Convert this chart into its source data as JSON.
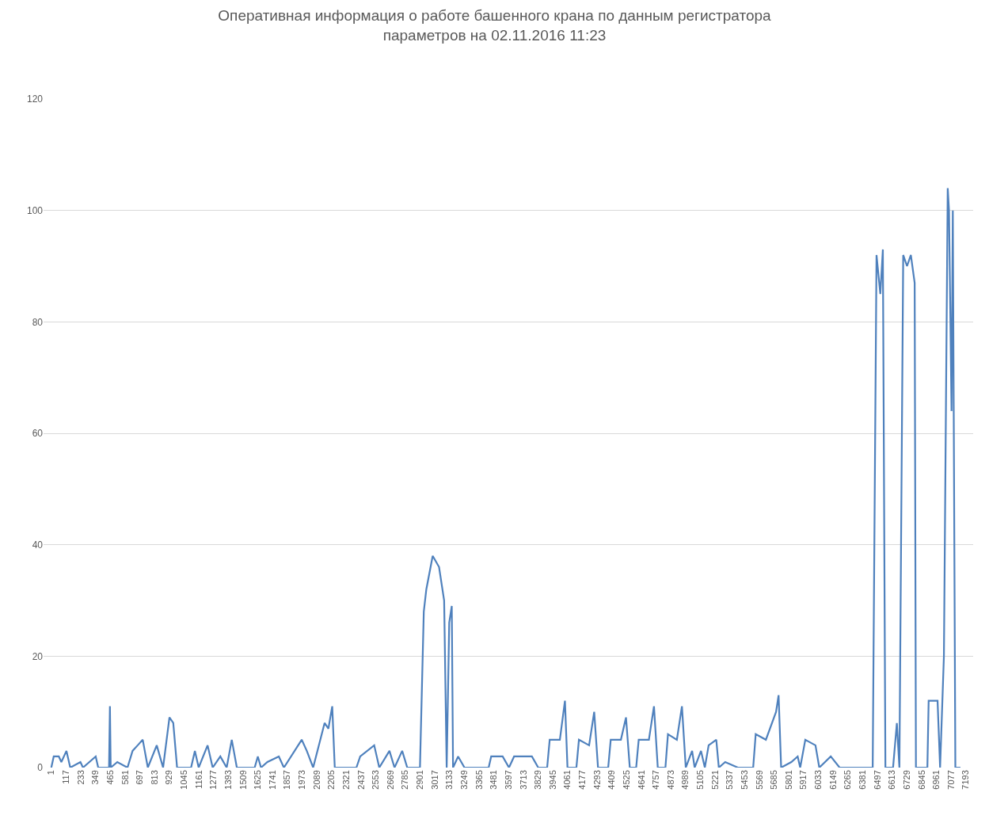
{
  "chart_data": {
    "type": "line",
    "title": "Оперативная информация о работе башенного крана по данным регистратора\nпараметров на 02.11.2016 11:23",
    "x": [
      1,
      20,
      60,
      80,
      120,
      150,
      230,
      250,
      350,
      370,
      455,
      462,
      468,
      520,
      600,
      640,
      680,
      720,
      760,
      830,
      880,
      930,
      960,
      990,
      1100,
      1130,
      1160,
      1230,
      1270,
      1330,
      1380,
      1420,
      1460,
      1600,
      1625,
      1650,
      1700,
      1790,
      1830,
      1970,
      2010,
      2060,
      2150,
      2180,
      2210,
      2230,
      2400,
      2430,
      2540,
      2580,
      2660,
      2700,
      2760,
      2800,
      2900,
      2930,
      2950,
      3000,
      3050,
      3090,
      3110,
      3130,
      3150,
      3160,
      3200,
      3250,
      3440,
      3460,
      3550,
      3600,
      3640,
      3720,
      3780,
      3830,
      3900,
      3920,
      4000,
      4040,
      4060,
      4130,
      4150,
      4230,
      4270,
      4300,
      4380,
      4400,
      4480,
      4520,
      4550,
      4600,
      4620,
      4700,
      4740,
      4770,
      4830,
      4850,
      4920,
      4960,
      4990,
      5040,
      5060,
      5110,
      5140,
      5170,
      5230,
      5250,
      5300,
      5400,
      5520,
      5540,
      5620,
      5700,
      5720,
      5740,
      5820,
      5870,
      5890,
      5930,
      6010,
      6040,
      6130,
      6200,
      6460,
      6490,
      6520,
      6540,
      6560,
      6620,
      6650,
      6670,
      6700,
      6730,
      6760,
      6790,
      6800,
      6890,
      6900,
      6970,
      6990,
      7020,
      7050,
      7060,
      7080,
      7090,
      7110,
      7150
    ],
    "series": [
      {
        "color": "#4f81bd",
        "values": [
          0,
          2,
          2,
          1,
          3,
          0,
          1,
          0,
          2,
          0,
          0,
          11,
          0,
          1,
          0,
          3,
          4,
          5,
          0,
          4,
          0,
          9,
          8,
          0,
          0,
          3,
          0,
          4,
          0,
          2,
          0,
          5,
          0,
          0,
          2,
          0,
          1,
          2,
          0,
          5,
          3,
          0,
          8,
          7,
          11,
          0,
          0,
          2,
          4,
          0,
          3,
          0,
          3,
          0,
          0,
          28,
          32,
          38,
          36,
          30,
          0,
          26,
          29,
          0,
          2,
          0,
          0,
          2,
          2,
          0,
          2,
          2,
          2,
          0,
          0,
          5,
          5,
          12,
          0,
          0,
          5,
          4,
          10,
          0,
          0,
          5,
          5,
          9,
          0,
          0,
          5,
          5,
          11,
          0,
          0,
          6,
          5,
          11,
          0,
          3,
          0,
          3,
          0,
          4,
          5,
          0,
          1,
          0,
          0,
          6,
          5,
          10,
          13,
          0,
          1,
          2,
          0,
          5,
          4,
          0,
          2,
          0,
          0,
          92,
          85,
          93,
          0,
          0,
          8,
          0,
          92,
          90,
          92,
          87,
          0,
          0,
          12,
          12,
          0,
          20,
          104,
          100,
          64,
          100,
          0,
          0
        ]
      }
    ],
    "xlim": [
      -60,
      7250
    ],
    "xticks": [
      1,
      117,
      233,
      349,
      465,
      581,
      697,
      813,
      929,
      1045,
      1161,
      1277,
      1393,
      1509,
      1625,
      1741,
      1857,
      1973,
      2089,
      2205,
      2321,
      2437,
      2553,
      2669,
      2785,
      2901,
      3017,
      3133,
      3249,
      3365,
      3481,
      3597,
      3713,
      3829,
      3945,
      4061,
      4177,
      4293,
      4409,
      4525,
      4641,
      4757,
      4873,
      4989,
      5105,
      5221,
      5337,
      5453,
      5569,
      5685,
      5801,
      5917,
      6033,
      6149,
      6265,
      6381,
      6497,
      6613,
      6729,
      6845,
      6961,
      7077,
      7193
    ],
    "ylim": [
      0,
      120
    ],
    "yticks": [
      0,
      20,
      40,
      60,
      80,
      100,
      120
    ],
    "grid": "y",
    "line_style": "solid",
    "marker": "none"
  }
}
